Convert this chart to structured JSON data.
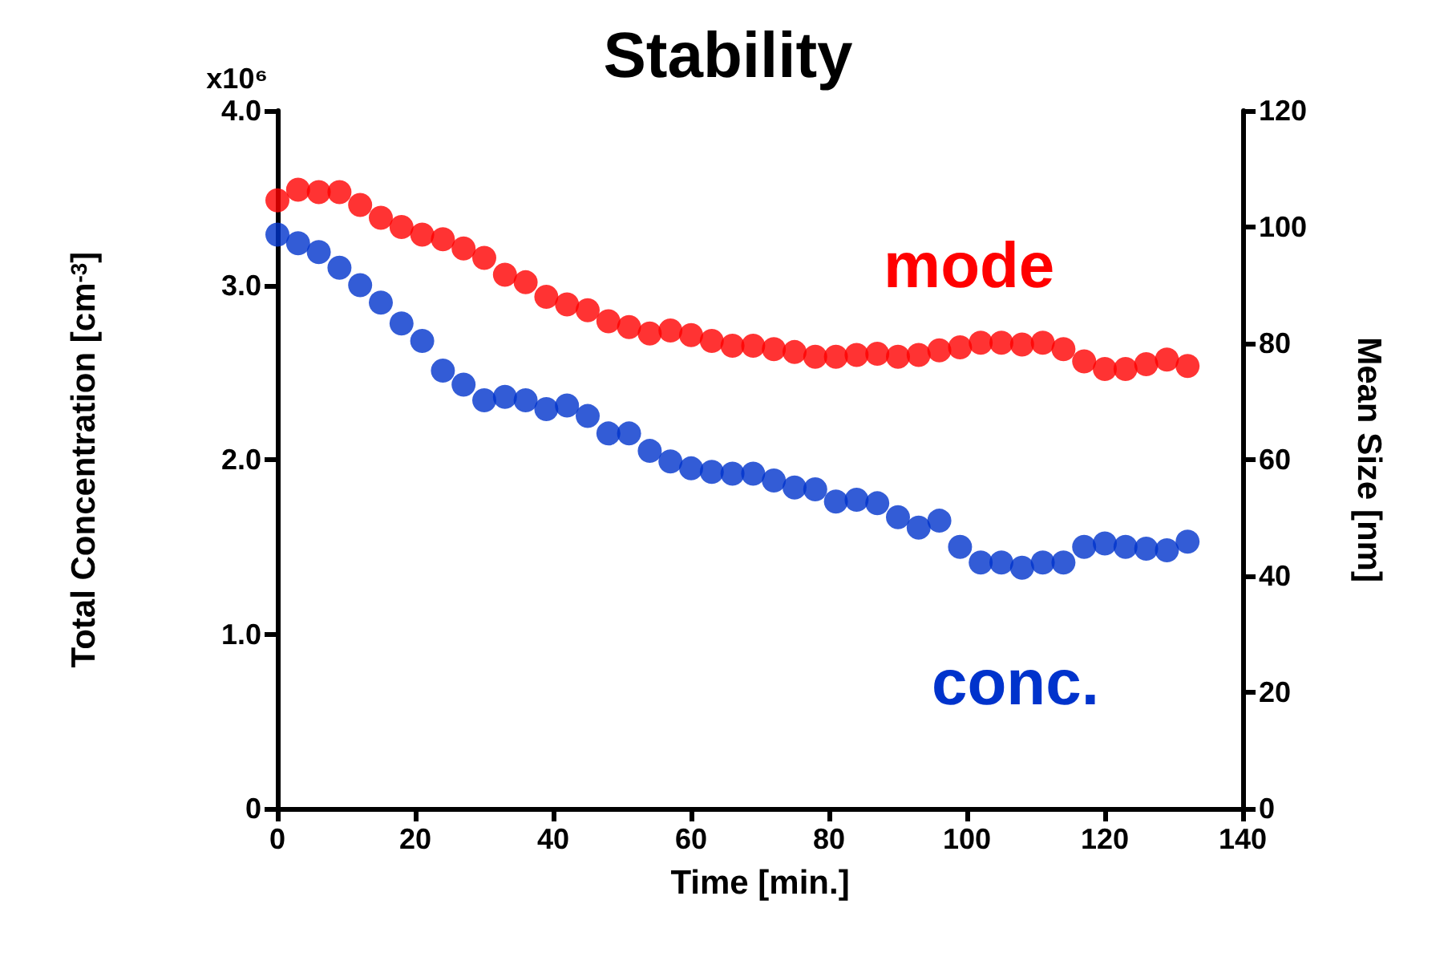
{
  "chart_data": {
    "type": "scatter",
    "title": "Stability",
    "xlabel": "Time [min.]",
    "ylabel": "Total Concentration [cm$^{-3}$]",
    "y2label": "Mean Size [nm]",
    "x": [
      0,
      3,
      6,
      9,
      12,
      15,
      18,
      21,
      24,
      27,
      30,
      33,
      36,
      39,
      42,
      45,
      48,
      51,
      54,
      57,
      60,
      63,
      66,
      69,
      72,
      75,
      78,
      81,
      84,
      87,
      90,
      93,
      96,
      99,
      102,
      105,
      108,
      111,
      114,
      117,
      120,
      123,
      126,
      129,
      132
    ],
    "series": [
      {
        "name": "mode",
        "color": "#ff0000",
        "axis": "y2",
        "values": [
          104.6,
          106.4,
          106,
          106,
          103.8,
          101.6,
          100,
          98.7,
          97.9,
          96.3,
          94.7,
          91.8,
          90.5,
          88,
          86.7,
          85.7,
          83.8,
          82.8,
          81.7,
          82.2,
          81.4,
          80.4,
          79.6,
          79.6,
          79,
          78.5,
          77.7,
          77.7,
          78,
          78.2,
          77.7,
          78,
          78.8,
          79.3,
          80.1,
          80.1,
          79.8,
          80.1,
          79,
          76.9,
          75.6,
          75.6,
          76.4,
          77.2,
          76.1
        ]
      },
      {
        "name": "conc.",
        "color": "#0033cc",
        "values": [
          3.29,
          3.24,
          3.19,
          3.1,
          3,
          2.9,
          2.78,
          2.68,
          2.51,
          2.43,
          2.34,
          2.36,
          2.34,
          2.29,
          2.31,
          2.25,
          2.15,
          2.15,
          2.05,
          1.99,
          1.95,
          1.93,
          1.92,
          1.92,
          1.88,
          1.84,
          1.83,
          1.76,
          1.77,
          1.75,
          1.67,
          1.61,
          1.65,
          1.5,
          1.41,
          1.41,
          1.38,
          1.41,
          1.41,
          1.5,
          1.52,
          1.5,
          1.49,
          1.48,
          1.53
        ]
      }
    ],
    "xlim": [
      0,
      140
    ],
    "xticks": [
      0,
      20,
      40,
      60,
      80,
      100,
      120,
      140
    ],
    "ylim": [
      0,
      4
    ],
    "yticks": [
      0,
      {
        "value": 1,
        "label": "1.0"
      },
      {
        "value": 2,
        "label": "2.0"
      },
      {
        "value": 3,
        "label": "3.0"
      },
      {
        "value": 4,
        "label": "4.0"
      }
    ],
    "annotations": [
      "x10⁶"
    ],
    "y2lim": [
      0,
      120
    ],
    "y2ticks": [
      0,
      20,
      40,
      60,
      80,
      100,
      120
    ],
    "marker": "circle"
  }
}
